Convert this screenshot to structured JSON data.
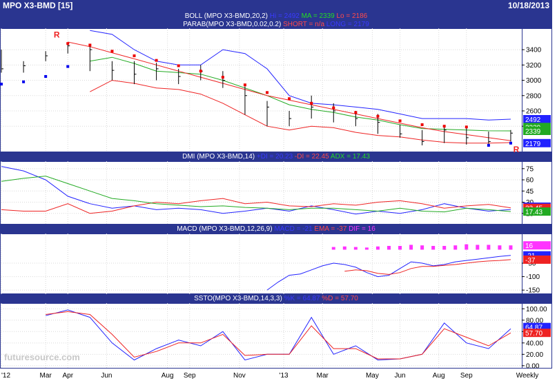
{
  "header": {
    "symbol_title": "MPO X3-BMD [15]",
    "date": "10/18/2013"
  },
  "panels": {
    "price": {
      "line1": [
        {
          "text": "BOLL (MPO X3-BMD,20,2) ",
          "color": "#ffffff"
        },
        {
          "text": "Hi = 2492",
          "color": "#3a3aff"
        },
        {
          "text": " MA = 2339",
          "color": "#22dd22"
        },
        {
          "text": " Lo = 2186",
          "color": "#ff4a4a"
        }
      ],
      "line2": [
        {
          "text": "PARAB(MPO X3-BMD,0.02,0.2) ",
          "color": "#ffffff"
        },
        {
          "text": "SHORT = n/a",
          "color": "#ff4a4a"
        },
        {
          "text": " LONG = 2179",
          "color": "#3a3aff"
        }
      ]
    },
    "dmi": [
      {
        "text": "DMI (MPO X3-BMD,14) ",
        "color": "#ffffff"
      },
      {
        "text": "+DI = 20.23",
        "color": "#3a3aff"
      },
      {
        "text": " -DI = 22.45",
        "color": "#ff4a4a"
      },
      {
        "text": " ADX = 17.43",
        "color": "#22dd22"
      }
    ],
    "macd": [
      {
        "text": "MACD (MPO X3-BMD,12,26,9) ",
        "color": "#ffffff"
      },
      {
        "text": "MACD = -21",
        "color": "#3a3aff"
      },
      {
        "text": " EMA = -37",
        "color": "#ff4a4a"
      },
      {
        "text": " DIF = 16",
        "color": "#ff33ff"
      }
    ],
    "ssto": [
      {
        "text": "SSTO(MPO X3-BMD,14,3,3) ",
        "color": "#ffffff"
      },
      {
        "text": "%K = 64.87",
        "color": "#3a3aff"
      },
      {
        "text": " %D = 57.70",
        "color": "#ff4a4a"
      }
    ]
  },
  "chart_data": [
    {
      "id": "price",
      "type": "ohlc",
      "ylim": [
        2060,
        3680
      ],
      "y_ticks": [
        2400,
        2600,
        2800,
        3000,
        3200,
        3400
      ],
      "y_tick_labels": [
        "2400",
        "2600",
        "2800",
        "3000",
        "3200",
        "3400"
      ],
      "x": [
        0,
        4,
        8,
        12,
        16,
        20,
        24,
        28,
        32,
        36,
        40,
        44,
        48,
        52,
        56,
        60,
        64,
        68,
        72,
        76,
        80,
        84,
        88,
        92
      ],
      "close": [
        3150,
        3190,
        3320,
        3450,
        3400,
        3130,
        3080,
        3150,
        3050,
        3120,
        3000,
        2800,
        2650,
        2500,
        2650,
        2600,
        2500,
        2450,
        2300,
        2200,
        2350,
        2250,
        2200,
        2310
      ],
      "high": [
        3400,
        3250,
        3380,
        3480,
        3460,
        3250,
        3250,
        3230,
        3150,
        3200,
        3120,
        2920,
        2730,
        2600,
        2800,
        2700,
        2600,
        2560,
        2420,
        2350,
        2400,
        2400,
        2330,
        2350
      ],
      "low": [
        3100,
        3100,
        3250,
        3350,
        3120,
        3000,
        2950,
        3000,
        2950,
        3000,
        2900,
        2550,
        2400,
        2400,
        2500,
        2450,
        2400,
        2300,
        2250,
        2150,
        2180,
        2160,
        2170,
        2200
      ],
      "boll_upper": [
        null,
        null,
        null,
        null,
        3650,
        3600,
        3400,
        3250,
        3200,
        3200,
        3400,
        3350,
        3150,
        2800,
        2700,
        2680,
        2650,
        2620,
        2560,
        2500,
        2500,
        2500,
        2480,
        2492
      ],
      "boll_ma": [
        null,
        null,
        null,
        null,
        3250,
        3300,
        3220,
        3120,
        3100,
        3080,
        3000,
        2900,
        2800,
        2680,
        2620,
        2580,
        2520,
        2480,
        2420,
        2370,
        2360,
        2350,
        2340,
        2339
      ],
      "boll_lower": [
        null,
        null,
        null,
        null,
        2850,
        3000,
        2960,
        2900,
        2880,
        2820,
        2700,
        2550,
        2400,
        2350,
        2400,
        2380,
        2320,
        2280,
        2260,
        2220,
        2190,
        2180,
        2180,
        2186
      ],
      "sar_short": [
        null,
        null,
        null,
        3480,
        3460,
        3380,
        3320,
        3260,
        3190,
        3120,
        3040,
        2940,
        2840,
        2760,
        2700,
        2640,
        2580,
        2530,
        2470,
        2420,
        2400,
        2390,
        null,
        null
      ],
      "sar_long": [
        2950,
        2980,
        3050,
        3180,
        null,
        null,
        null,
        null,
        null,
        null,
        null,
        null,
        null,
        null,
        null,
        null,
        null,
        null,
        null,
        null,
        null,
        null,
        2150,
        2179
      ],
      "trendline": [
        null,
        null,
        null,
        3500,
        3440,
        3360,
        3280,
        3200,
        3120,
        3040,
        2960,
        2880,
        2800,
        2740,
        2680,
        2620,
        2560,
        2500,
        2440,
        2380,
        2330,
        2290,
        2250,
        2210
      ],
      "markers": [
        {
          "x": 10,
          "y": 3560,
          "label": "R"
        },
        {
          "x": 93,
          "y": 2060,
          "label": "R"
        }
      ],
      "price_tags": [
        {
          "y": 2492,
          "label": "2492",
          "color": "#2222ff"
        },
        {
          "y": 2390,
          "label": "2339",
          "color": "#22aa22"
        },
        {
          "y": 2339,
          "label": "2339",
          "color": "#22aa22"
        },
        {
          "y": 2179,
          "label": "2179",
          "color": "#2222ff"
        }
      ]
    },
    {
      "id": "dmi",
      "type": "line",
      "ylim": [
        0,
        85
      ],
      "y_ticks": [
        15,
        30,
        45,
        60,
        75
      ],
      "y_tick_labels": [
        "15",
        "30",
        "45",
        "60",
        "75"
      ],
      "x": [
        0,
        4,
        8,
        12,
        16,
        20,
        24,
        28,
        32,
        36,
        40,
        44,
        48,
        52,
        56,
        60,
        64,
        68,
        72,
        76,
        80,
        84,
        88,
        92
      ],
      "series": [
        {
          "name": "+DI",
          "color": "#2222ff",
          "values": [
            78,
            72,
            60,
            38,
            28,
            22,
            25,
            20,
            22,
            20,
            15,
            18,
            22,
            18,
            25,
            20,
            14,
            18,
            15,
            20,
            28,
            22,
            18,
            20.23
          ]
        },
        {
          "name": "-DI",
          "color": "#ee2222",
          "values": [
            20,
            18,
            18,
            28,
            15,
            18,
            25,
            30,
            28,
            32,
            35,
            28,
            30,
            25,
            24,
            28,
            26,
            30,
            32,
            28,
            22,
            25,
            27,
            22.45
          ]
        },
        {
          "name": "ADX",
          "color": "#22aa22",
          "values": [
            58,
            62,
            65,
            55,
            45,
            35,
            32,
            28,
            26,
            24,
            25,
            23,
            22,
            20,
            22,
            22,
            20,
            18,
            22,
            18,
            17,
            22,
            20,
            17.43
          ]
        }
      ],
      "value_tags": [
        {
          "y": 24.0,
          "label": "20.23",
          "color": "#2222ff"
        },
        {
          "y": 22.45,
          "label": "22.45",
          "color": "#ee2222"
        },
        {
          "y": 17.43,
          "label": "17.43",
          "color": "#22aa22"
        }
      ]
    },
    {
      "id": "macd",
      "type": "line",
      "ylim": [
        -165,
        60
      ],
      "y_ticks": [
        -150,
        -100,
        -50
      ],
      "y_tick_labels": [
        "-150",
        "-100",
        "-50"
      ],
      "x": [
        48,
        50,
        52,
        54,
        56,
        58,
        60,
        62,
        64,
        66,
        68,
        70,
        72,
        74,
        76,
        78,
        80,
        82,
        84,
        86,
        88,
        90,
        92
      ],
      "series": [
        {
          "name": "MACD",
          "color": "#2222ff",
          "values": [
            -150,
            -120,
            -95,
            -90,
            -75,
            -60,
            -50,
            -55,
            -65,
            -85,
            -100,
            -95,
            -70,
            -45,
            -50,
            -60,
            -55,
            -45,
            -40,
            -35,
            -30,
            -25,
            -21
          ]
        },
        {
          "name": "EMA",
          "color": "#ee2222",
          "values": [
            null,
            null,
            null,
            null,
            null,
            null,
            null,
            -80,
            -75,
            -78,
            -88,
            -92,
            -85,
            -70,
            -62,
            -62,
            -58,
            -55,
            -50,
            -45,
            -42,
            -40,
            -37
          ]
        }
      ],
      "histogram": {
        "name": "DIF",
        "color": "#ff33ff",
        "x": [
          60,
          62,
          64,
          66,
          68,
          70,
          72,
          74,
          76,
          78,
          80,
          82,
          84,
          86,
          88,
          90,
          92
        ],
        "values": [
          10,
          12,
          10,
          8,
          12,
          14,
          14,
          18,
          16,
          14,
          14,
          16,
          20,
          18,
          18,
          16,
          16
        ]
      },
      "value_tags": [
        {
          "y": 16,
          "label": "16",
          "color": "#ff33ff"
        },
        {
          "y": -21,
          "label": "-21",
          "color": "#2222ff"
        },
        {
          "y": -37,
          "label": "-37",
          "color": "#ee2222"
        }
      ]
    },
    {
      "id": "ssto",
      "type": "line",
      "ylim": [
        -5,
        110
      ],
      "y_ticks": [
        0,
        20,
        40,
        60,
        80,
        100
      ],
      "y_tick_labels": [
        "0.00",
        "20.00",
        "40.00",
        "60.00",
        "80.00",
        "100.00"
      ],
      "x": [
        8,
        12,
        16,
        20,
        24,
        28,
        32,
        36,
        40,
        44,
        48,
        52,
        56,
        60,
        64,
        68,
        72,
        76,
        80,
        84,
        88,
        92
      ],
      "series": [
        {
          "name": "%K",
          "color": "#2222ff",
          "values": [
            88,
            98,
            85,
            40,
            10,
            30,
            45,
            35,
            60,
            10,
            20,
            20,
            85,
            20,
            35,
            10,
            12,
            20,
            75,
            40,
            30,
            64.87
          ]
        },
        {
          "name": "%D",
          "color": "#ee2222",
          "values": [
            90,
            95,
            90,
            55,
            15,
            25,
            40,
            40,
            55,
            18,
            20,
            20,
            70,
            30,
            30,
            12,
            12,
            20,
            65,
            50,
            35,
            57.7
          ]
        }
      ],
      "value_tags": [
        {
          "y": 68,
          "label": "64.87",
          "color": "#2222ff"
        },
        {
          "y": 57.7,
          "label": "57.70",
          "color": "#ee2222"
        }
      ]
    }
  ],
  "x_axis": {
    "labels": [
      "'12",
      "Mar",
      "Apr",
      "Jun",
      "Aug",
      "Sep",
      "Nov",
      "'13",
      "Mar",
      "May",
      "Jun",
      "Aug",
      "Sep",
      "Weekly"
    ],
    "positions": [
      0,
      8,
      12,
      19,
      30,
      34,
      43,
      51,
      58,
      67,
      72,
      79,
      84,
      94
    ]
  },
  "watermark": "futuresource.com"
}
